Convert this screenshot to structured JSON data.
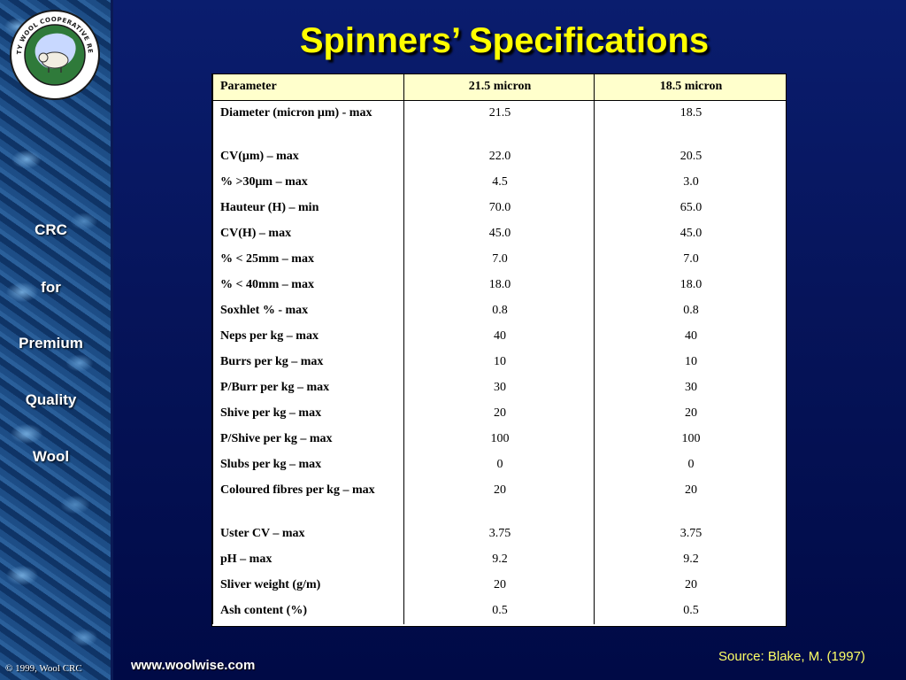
{
  "sidebar": {
    "logo_ring_text": "PREMIUM QUALITY WOOL COOPERATIVE RESEARCH CENTRE",
    "words": [
      "CRC",
      "for",
      "Premium",
      "Quality",
      "Wool"
    ],
    "copyright": "© 1999, Wool CRC"
  },
  "title": "Spinners’ Specifications",
  "table": {
    "headers": [
      "Parameter",
      "21.5 micron",
      "18.5 micron"
    ],
    "rows": [
      {
        "param": "Diameter (micron μm) - max",
        "a": "21.5",
        "b": "18.5"
      },
      {
        "param": "CV(μm) – max",
        "a": "22.0",
        "b": "20.5"
      },
      {
        "param": "% >30μm – max",
        "a": "4.5",
        "b": "3.0"
      },
      {
        "param": "Hauteur (H) – min",
        "a": "70.0",
        "b": "65.0"
      },
      {
        "param": "CV(H) – max",
        "a": "45.0",
        "b": "45.0"
      },
      {
        "param": "% < 25mm – max",
        "a": "7.0",
        "b": "7.0"
      },
      {
        "param": "% < 40mm – max",
        "a": "18.0",
        "b": "18.0"
      },
      {
        "param": "Soxhlet % - max",
        "a": "0.8",
        "b": "0.8"
      },
      {
        "param": "Neps per kg – max",
        "a": "40",
        "b": "40"
      },
      {
        "param": "Burrs per kg – max",
        "a": "10",
        "b": "10"
      },
      {
        "param": "P/Burr per kg – max",
        "a": "30",
        "b": "30"
      },
      {
        "param": "Shive per kg – max",
        "a": "20",
        "b": "20"
      },
      {
        "param": "P/Shive per kg – max",
        "a": "100",
        "b": "100"
      },
      {
        "param": "Slubs per kg – max",
        "a": "0",
        "b": "0"
      },
      {
        "param": "Coloured fibres per kg – max",
        "a": "20",
        "b": "20"
      },
      {
        "param": "Uster CV – max",
        "a": "3.75",
        "b": "3.75"
      },
      {
        "param": "pH – max",
        "a": "9.2",
        "b": "9.2"
      },
      {
        "param": "Sliver weight  (g/m)",
        "a": "20",
        "b": "20"
      },
      {
        "param": "Ash content (%)",
        "a": "0.5",
        "b": "0.5"
      }
    ]
  },
  "footer": {
    "url": "www.woolwise.com",
    "source": "Source: Blake, M. (1997)"
  },
  "colors": {
    "background": "#06145a",
    "title": "#ffff00",
    "header_fill": "#ffffcc",
    "source_text": "#ffff66"
  }
}
